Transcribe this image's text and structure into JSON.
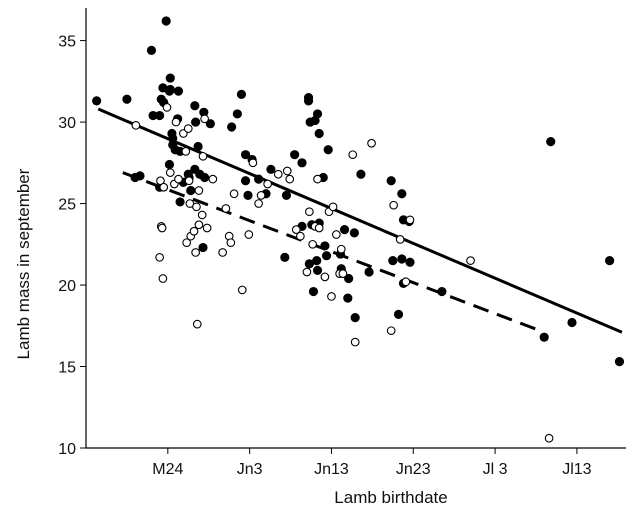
{
  "chart_data": {
    "type": "scatter",
    "xlabel": "Lamb birthdate",
    "ylabel": "Lamb mass in september",
    "xlim": [
      14,
      80
    ],
    "ylim": [
      10,
      37
    ],
    "x_ticks": [
      {
        "value": 24,
        "label": "M24"
      },
      {
        "value": 34,
        "label": "Jn3"
      },
      {
        "value": 44,
        "label": "Jn13"
      },
      {
        "value": 54,
        "label": "Jn23"
      },
      {
        "value": 64,
        "label": "Jl 3"
      },
      {
        "value": 74,
        "label": "Jl13"
      }
    ],
    "y_ticks": [
      10,
      15,
      20,
      25,
      30,
      35
    ],
    "grid": false,
    "series": [
      {
        "marker": "filled-circle",
        "color": "#000000",
        "points": [
          [
            15.3,
            31.3
          ],
          [
            19,
            31.4
          ],
          [
            20,
            26.6
          ],
          [
            20.6,
            26.7
          ],
          [
            22,
            34.4
          ],
          [
            22.2,
            30.4
          ],
          [
            23,
            26.0
          ],
          [
            23,
            30.4
          ],
          [
            23.2,
            31.4
          ],
          [
            23.4,
            32.1
          ],
          [
            23.5,
            31.2
          ],
          [
            23.8,
            36.2
          ],
          [
            24.2,
            27.4
          ],
          [
            24.2,
            31.9
          ],
          [
            24.3,
            32.7
          ],
          [
            24.3,
            32.0
          ],
          [
            24.5,
            29.3
          ],
          [
            24.6,
            29.0
          ],
          [
            24.6,
            28.6
          ],
          [
            24.9,
            28.3
          ],
          [
            25.2,
            30.2
          ],
          [
            25.3,
            31.9
          ],
          [
            25.5,
            25.1
          ],
          [
            25.5,
            28.2
          ],
          [
            25.9,
            26.3
          ],
          [
            26.5,
            26.8
          ],
          [
            26.6,
            26.6
          ],
          [
            26.8,
            25.8
          ],
          [
            27.3,
            27.1
          ],
          [
            27.3,
            31.0
          ],
          [
            27.4,
            30.0
          ],
          [
            27.7,
            28.5
          ],
          [
            27.9,
            26.8
          ],
          [
            28.3,
            22.3
          ],
          [
            28.4,
            30.6
          ],
          [
            28.5,
            26.6
          ],
          [
            29.2,
            29.9
          ],
          [
            31.8,
            29.7
          ],
          [
            32.5,
            30.5
          ],
          [
            33.0,
            31.7
          ],
          [
            33.5,
            28.0
          ],
          [
            33.5,
            26.4
          ],
          [
            33.8,
            25.5
          ],
          [
            34.3,
            27.7
          ],
          [
            35.1,
            26.5
          ],
          [
            36.0,
            25.6
          ],
          [
            36.6,
            27.1
          ],
          [
            38.3,
            21.7
          ],
          [
            38.5,
            25.5
          ],
          [
            39.5,
            28.0
          ],
          [
            40.4,
            23.6
          ],
          [
            40.4,
            27.5
          ],
          [
            41.2,
            31.5
          ],
          [
            41.2,
            31.3
          ],
          [
            41.3,
            21.3
          ],
          [
            41.4,
            30.0
          ],
          [
            41.6,
            23.7
          ],
          [
            41.8,
            19.6
          ],
          [
            42.0,
            30.1
          ],
          [
            42.2,
            21.5
          ],
          [
            42.3,
            30.5
          ],
          [
            42.3,
            20.9
          ],
          [
            42.5,
            23.8
          ],
          [
            42.5,
            29.3
          ],
          [
            43.0,
            26.6
          ],
          [
            43.2,
            22.4
          ],
          [
            43.4,
            21.8
          ],
          [
            43.6,
            28.3
          ],
          [
            45.1,
            21.9
          ],
          [
            45.2,
            21.0
          ],
          [
            45.6,
            23.4
          ],
          [
            46.0,
            19.2
          ],
          [
            46.1,
            20.4
          ],
          [
            46.8,
            23.2
          ],
          [
            46.9,
            18.0
          ],
          [
            47.6,
            26.8
          ],
          [
            48.6,
            20.8
          ],
          [
            51.3,
            26.4
          ],
          [
            51.5,
            21.5
          ],
          [
            52.2,
            18.2
          ],
          [
            52.6,
            25.6
          ],
          [
            52.6,
            21.6
          ],
          [
            52.8,
            20.1
          ],
          [
            52.8,
            24.0
          ],
          [
            53.5,
            23.9
          ],
          [
            53.6,
            21.4
          ],
          [
            57.5,
            19.6
          ],
          [
            70.0,
            16.8
          ],
          [
            70.8,
            28.8
          ],
          [
            73.4,
            17.7
          ],
          [
            78.0,
            21.5
          ],
          [
            79.2,
            15.3
          ]
        ]
      },
      {
        "marker": "open-circle",
        "color": "#000000",
        "points": [
          [
            20.1,
            29.8
          ],
          [
            23.0,
            21.7
          ],
          [
            23.1,
            26.4
          ],
          [
            23.2,
            23.6
          ],
          [
            23.3,
            23.5
          ],
          [
            23.4,
            20.4
          ],
          [
            23.5,
            26.0
          ],
          [
            23.9,
            30.9
          ],
          [
            24.3,
            26.9
          ],
          [
            24.8,
            26.2
          ],
          [
            25.0,
            30.0
          ],
          [
            25.3,
            26.5
          ],
          [
            25.9,
            29.3
          ],
          [
            26.2,
            28.2
          ],
          [
            26.3,
            22.6
          ],
          [
            26.5,
            29.6
          ],
          [
            26.6,
            26.4
          ],
          [
            26.7,
            25.0
          ],
          [
            26.8,
            23.0
          ],
          [
            27.2,
            23.3
          ],
          [
            27.4,
            22.0
          ],
          [
            27.5,
            24.8
          ],
          [
            27.6,
            17.6
          ],
          [
            27.8,
            25.8
          ],
          [
            27.8,
            23.7
          ],
          [
            28.2,
            24.3
          ],
          [
            28.3,
            27.9
          ],
          [
            28.5,
            30.2
          ],
          [
            28.8,
            23.5
          ],
          [
            29.5,
            26.5
          ],
          [
            30.7,
            22.0
          ],
          [
            31.1,
            24.7
          ],
          [
            31.5,
            23.0
          ],
          [
            31.7,
            22.6
          ],
          [
            32.1,
            25.6
          ],
          [
            33.1,
            19.7
          ],
          [
            33.9,
            23.1
          ],
          [
            34.4,
            27.5
          ],
          [
            35.1,
            25.0
          ],
          [
            35.4,
            25.5
          ],
          [
            36.2,
            26.2
          ],
          [
            37.5,
            26.8
          ],
          [
            38.6,
            27.0
          ],
          [
            38.9,
            26.5
          ],
          [
            39.7,
            23.4
          ],
          [
            40.2,
            23.0
          ],
          [
            41.0,
            20.8
          ],
          [
            41.3,
            24.5
          ],
          [
            41.7,
            22.5
          ],
          [
            42.0,
            23.6
          ],
          [
            42.3,
            26.5
          ],
          [
            42.5,
            23.5
          ],
          [
            43.2,
            20.5
          ],
          [
            43.7,
            24.5
          ],
          [
            44.0,
            19.3
          ],
          [
            44.2,
            24.8
          ],
          [
            44.6,
            23.1
          ],
          [
            45.0,
            20.7
          ],
          [
            45.2,
            22.2
          ],
          [
            45.4,
            20.7
          ],
          [
            46.6,
            28.0
          ],
          [
            46.9,
            16.5
          ],
          [
            48.9,
            28.7
          ],
          [
            51.3,
            17.2
          ],
          [
            51.6,
            24.9
          ],
          [
            52.4,
            22.8
          ],
          [
            53.1,
            20.2
          ],
          [
            53.6,
            24.0
          ],
          [
            61.0,
            21.5
          ],
          [
            70.6,
            10.6
          ]
        ]
      }
    ],
    "trend_lines": [
      {
        "style": "solid",
        "x": [
          15.5,
          79.5
        ],
        "y": [
          30.8,
          17.1
        ]
      },
      {
        "style": "dashed",
        "x": [
          18.5,
          69.5
        ],
        "y": [
          26.9,
          17.2
        ]
      }
    ]
  }
}
